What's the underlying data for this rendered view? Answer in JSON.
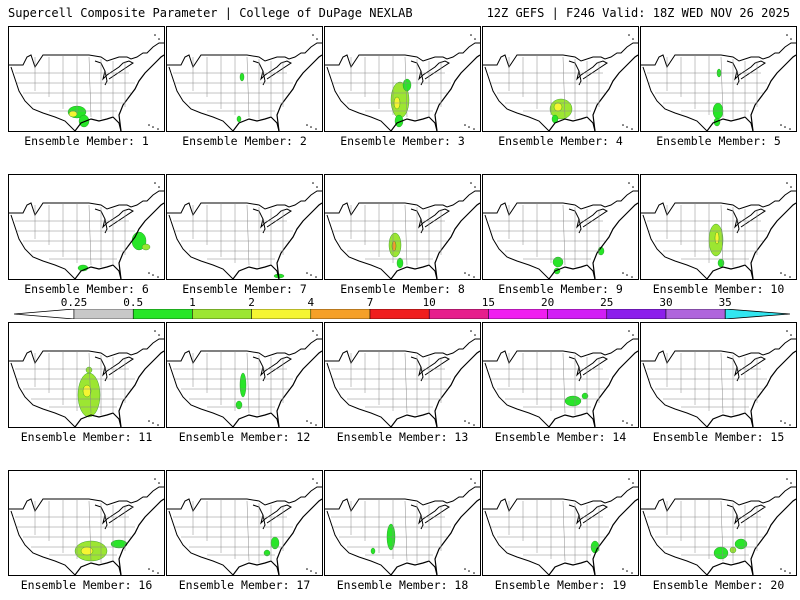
{
  "header": {
    "left": "Supercell Composite Parameter | College of DuPage NEXLAB",
    "right": "12Z GEFS | F246 Valid: 18Z WED NOV 26 2025"
  },
  "colorbar": {
    "labels": [
      "0.25",
      "0.5",
      "1",
      "2",
      "4",
      "7",
      "10",
      "15",
      "20",
      "25",
      "30",
      "35"
    ],
    "colors": [
      "#c8c8c8",
      "#28e628",
      "#9ce632",
      "#f5f532",
      "#f5a028",
      "#f01e1e",
      "#e61e8c",
      "#f01ef0",
      "#d21ef5",
      "#8c1eeb",
      "#af64dc",
      "#32e6f0"
    ]
  },
  "members": [
    {
      "label": "Ensemble Member: 1",
      "blobs": [
        [
          68,
          85,
          9,
          6,
          "g"
        ],
        [
          75,
          94,
          5,
          6,
          "g"
        ],
        [
          64,
          87,
          4,
          3,
          "y"
        ]
      ]
    },
    {
      "label": "Ensemble Member: 2",
      "blobs": [
        [
          75,
          50,
          2,
          4,
          "g"
        ],
        [
          72,
          92,
          2,
          3,
          "g"
        ]
      ]
    },
    {
      "label": "Ensemble Member: 3",
      "blobs": [
        [
          75,
          73,
          9,
          18,
          "l"
        ],
        [
          72,
          76,
          3,
          6,
          "y"
        ],
        [
          74,
          94,
          4,
          6,
          "g"
        ],
        [
          82,
          58,
          4,
          6,
          "g"
        ]
      ]
    },
    {
      "label": "Ensemble Member: 4",
      "blobs": [
        [
          78,
          82,
          11,
          10,
          "l"
        ],
        [
          75,
          80,
          4,
          4,
          "y"
        ],
        [
          72,
          92,
          3,
          4,
          "g"
        ]
      ]
    },
    {
      "label": "Ensemble Member: 5",
      "blobs": [
        [
          77,
          84,
          5,
          8,
          "g"
        ],
        [
          78,
          46,
          2,
          4,
          "g"
        ],
        [
          76,
          95,
          3,
          4,
          "g"
        ]
      ]
    },
    {
      "label": "Ensemble Member: 6",
      "blobs": [
        [
          130,
          66,
          7,
          9,
          "g"
        ],
        [
          137,
          72,
          4,
          3,
          "l"
        ],
        [
          74,
          93,
          5,
          3,
          "g"
        ]
      ]
    },
    {
      "label": "Ensemble Member: 7",
      "blobs": [
        [
          112,
          101,
          5,
          2,
          "g"
        ]
      ]
    },
    {
      "label": "Ensemble Member: 8",
      "blobs": [
        [
          70,
          70,
          6,
          12,
          "l"
        ],
        [
          69,
          71,
          2,
          5,
          "o"
        ],
        [
          75,
          88,
          3,
          5,
          "g"
        ]
      ]
    },
    {
      "label": "Ensemble Member: 9",
      "blobs": [
        [
          75,
          87,
          5,
          5,
          "g"
        ],
        [
          118,
          76,
          3,
          4,
          "g"
        ],
        [
          74,
          96,
          3,
          3,
          "g"
        ]
      ]
    },
    {
      "label": "Ensemble Member: 10",
      "blobs": [
        [
          75,
          65,
          7,
          16,
          "l"
        ],
        [
          76,
          63,
          2,
          6,
          "y"
        ],
        [
          80,
          88,
          3,
          4,
          "g"
        ]
      ]
    },
    {
      "label": "Ensemble Member: 11",
      "blobs": [
        [
          80,
          72,
          11,
          22,
          "l"
        ],
        [
          78,
          68,
          4,
          6,
          "y"
        ],
        [
          80,
          47,
          3,
          3,
          "l"
        ]
      ]
    },
    {
      "label": "Ensemble Member: 12",
      "blobs": [
        [
          76,
          62,
          3,
          12,
          "g"
        ],
        [
          72,
          82,
          3,
          4,
          "g"
        ]
      ]
    },
    {
      "label": "Ensemble Member: 13",
      "blobs": []
    },
    {
      "label": "Ensemble Member: 14",
      "blobs": [
        [
          90,
          78,
          8,
          5,
          "g"
        ],
        [
          102,
          73,
          3,
          3,
          "g"
        ]
      ]
    },
    {
      "label": "Ensemble Member: 15",
      "blobs": []
    },
    {
      "label": "Ensemble Member: 16",
      "blobs": [
        [
          82,
          80,
          16,
          10,
          "l"
        ],
        [
          78,
          80,
          6,
          4,
          "y"
        ],
        [
          110,
          73,
          8,
          4,
          "g"
        ]
      ]
    },
    {
      "label": "Ensemble Member: 17",
      "blobs": [
        [
          108,
          72,
          4,
          6,
          "g"
        ],
        [
          100,
          82,
          3,
          3,
          "g"
        ]
      ]
    },
    {
      "label": "Ensemble Member: 18",
      "blobs": [
        [
          66,
          66,
          4,
          13,
          "g"
        ],
        [
          48,
          80,
          2,
          3,
          "g"
        ]
      ]
    },
    {
      "label": "Ensemble Member: 19",
      "blobs": [
        [
          112,
          76,
          4,
          6,
          "g"
        ]
      ]
    },
    {
      "label": "Ensemble Member: 20",
      "blobs": [
        [
          80,
          82,
          7,
          6,
          "g"
        ],
        [
          100,
          73,
          6,
          5,
          "g"
        ],
        [
          92,
          79,
          3,
          3,
          "l"
        ]
      ]
    }
  ]
}
